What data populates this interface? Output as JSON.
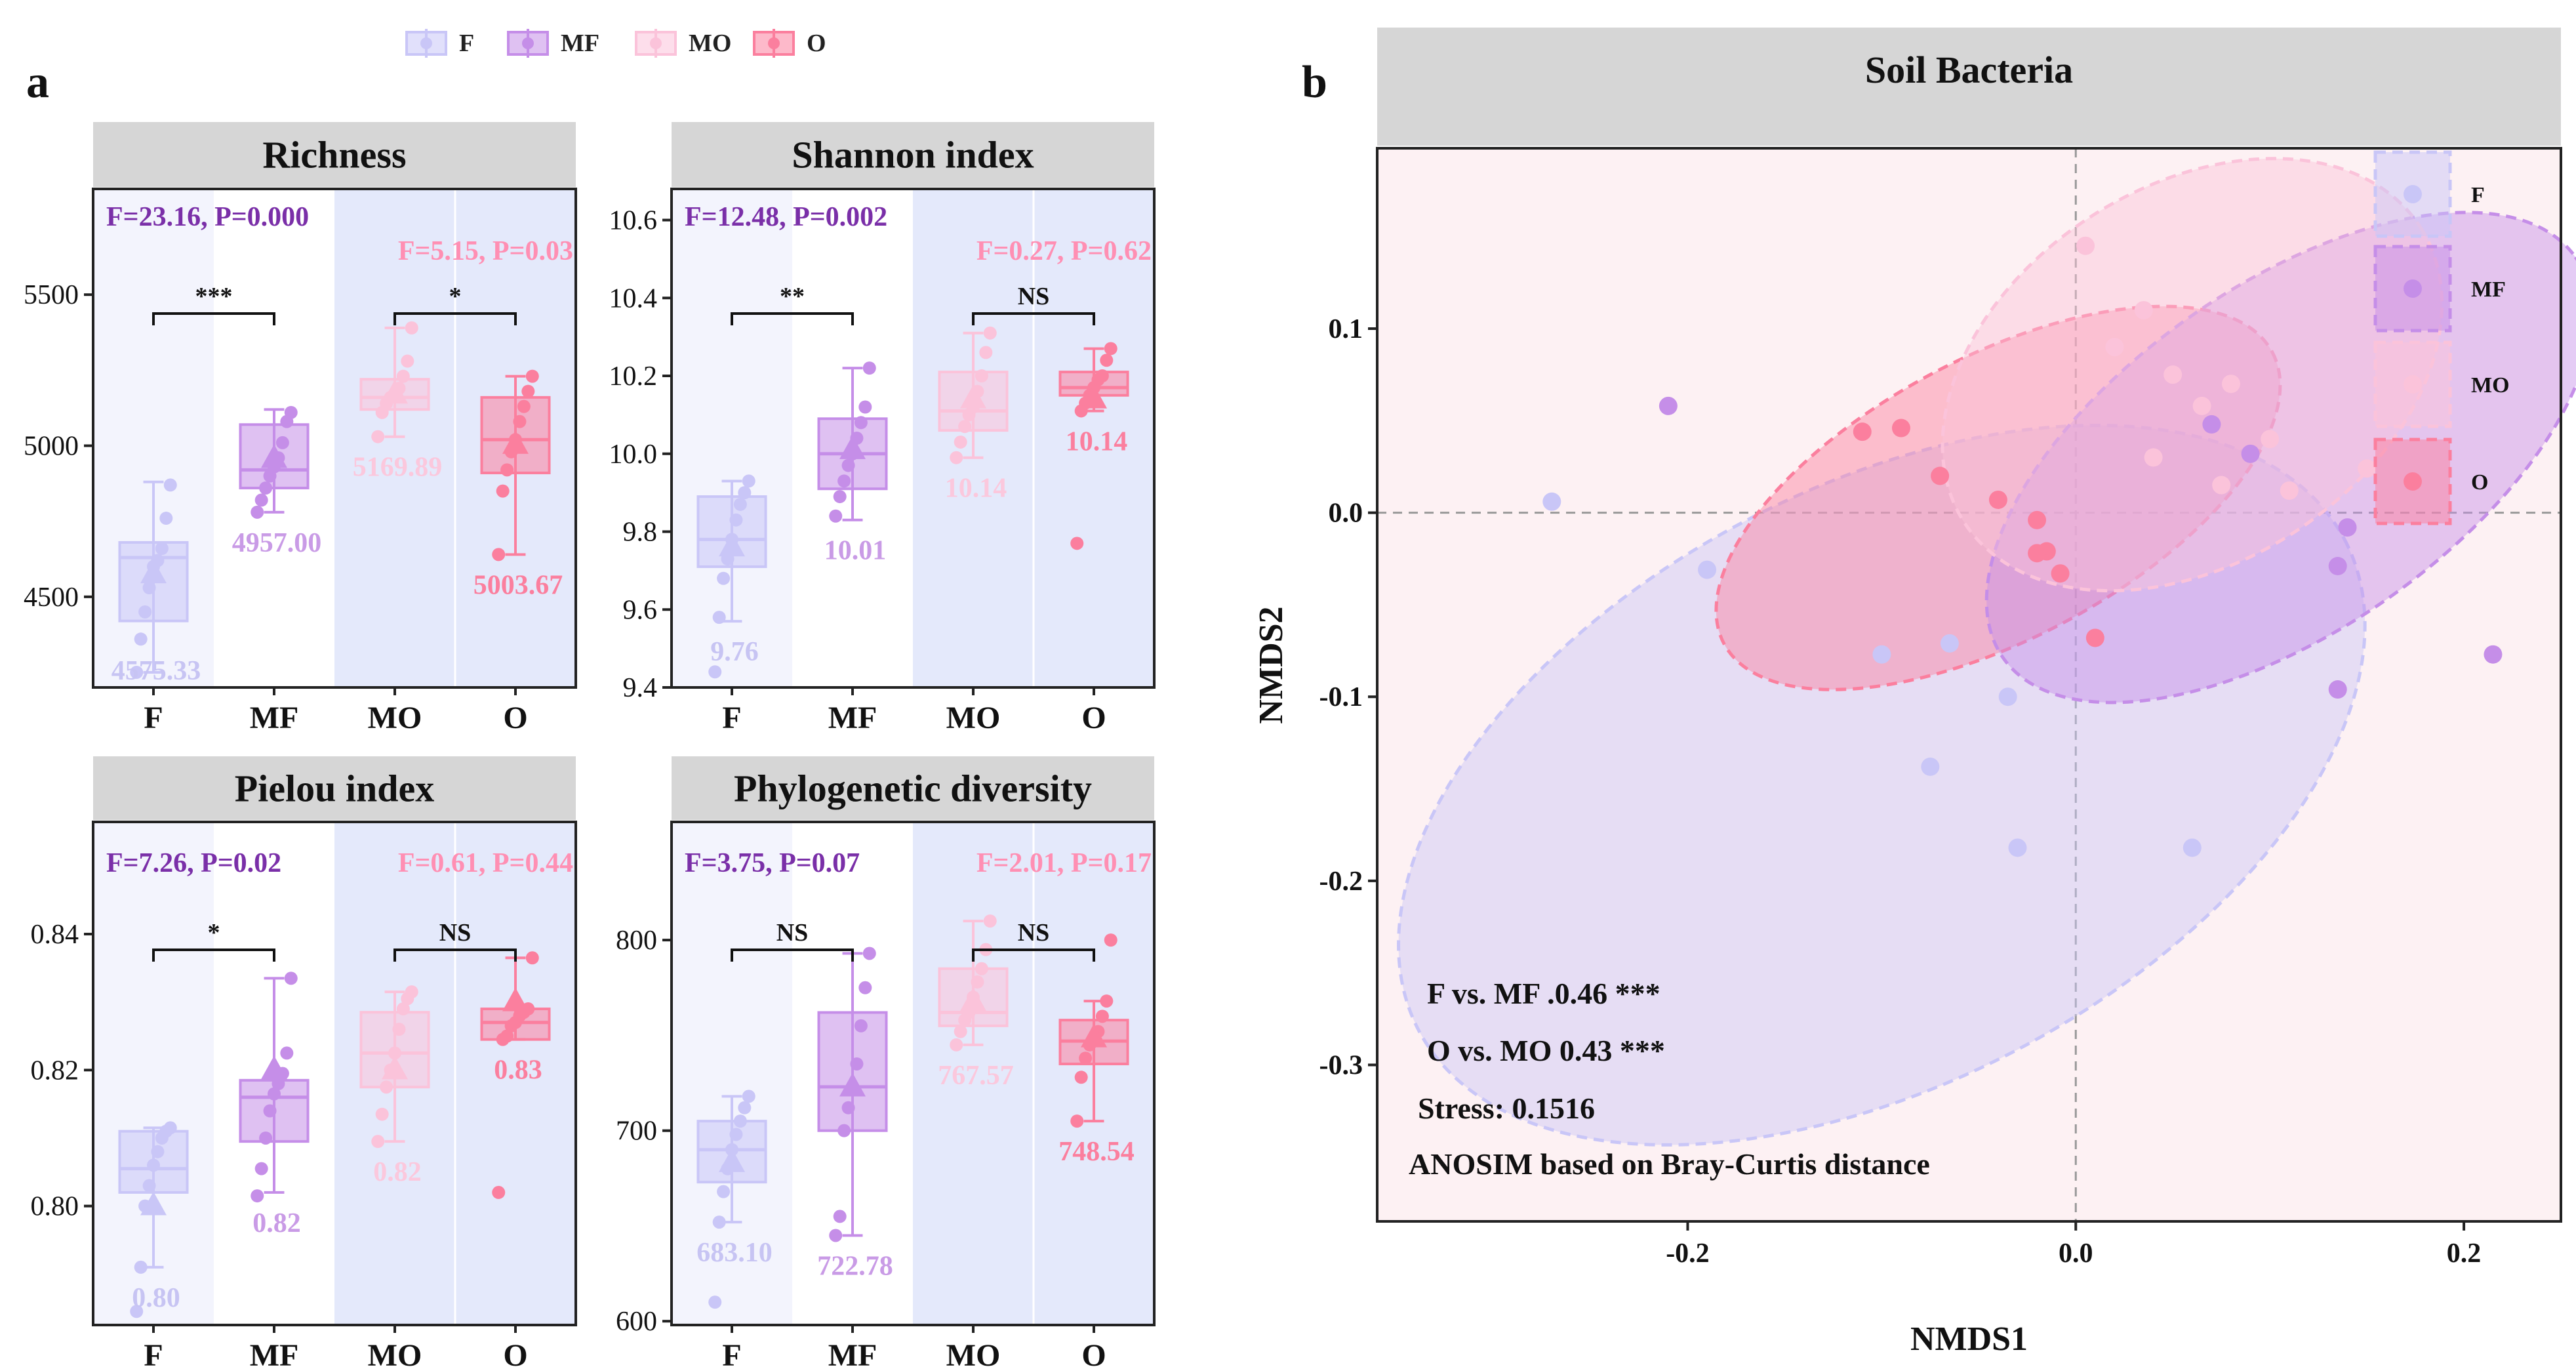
{
  "legend": {
    "items": [
      {
        "label": "F",
        "color": "#c9c6f7"
      },
      {
        "label": "MF",
        "color": "#c58ee8"
      },
      {
        "label": "MO",
        "color": "#fbc3da"
      },
      {
        "label": "O",
        "color": "#fb7f9e"
      }
    ]
  },
  "panel_a": {
    "label": "a"
  },
  "panel_b": {
    "label": "b"
  },
  "colors": {
    "F": "#c9c6f7",
    "MF": "#c58ee8",
    "MO": "#fbc3da",
    "O": "#fb7f9e",
    "title_bg": "#d6d6d6",
    "stat_left": "#7a2fa8",
    "stat_right": "#ff8fb3",
    "F_text": "#c7c4f3",
    "MF_text": "#c99be6",
    "MO_text": "#fbc8dd",
    "O_text": "#fb7f9e"
  },
  "chart_data": [
    {
      "id": "richness",
      "type": "box",
      "title": "Richness",
      "categories": [
        "F",
        "MF",
        "MO",
        "O"
      ],
      "ylim": [
        4200,
        5850
      ],
      "yticks": [
        4500,
        5000,
        5500
      ],
      "stats_left": "F=23.16, P=0.000",
      "stats_right": "F=5.15, P=0.03",
      "sig_left": "***",
      "sig_right": "*",
      "boxes": [
        {
          "min": 4250,
          "q1": 4420,
          "median": 4630,
          "q3": 4680,
          "max": 4880,
          "mean": 4575.33
        },
        {
          "min": 4780,
          "q1": 4860,
          "median": 4920,
          "q3": 5070,
          "max": 5120,
          "mean": 4957.0
        },
        {
          "min": 5030,
          "q1": 5120,
          "median": 5160,
          "q3": 5220,
          "max": 5390,
          "mean": 5169.89
        },
        {
          "min": 4640,
          "q1": 4910,
          "median": 5020,
          "q3": 5160,
          "max": 5230,
          "mean": 5003.67
        }
      ],
      "points": [
        [
          4250,
          4360,
          4450,
          4530,
          4600,
          4620,
          4660,
          4760,
          4870
        ],
        [
          4780,
          4820,
          4860,
          4900,
          4930,
          4960,
          5010,
          5080,
          5110
        ],
        [
          5030,
          5110,
          5140,
          5160,
          5170,
          5190,
          5230,
          5280,
          5390
        ],
        [
          4640,
          4850,
          4920,
          4980,
          5020,
          5080,
          5130,
          5180,
          5230
        ]
      ],
      "mean_labels": [
        "4575.33",
        "4957.00",
        "5169.89",
        "5003.67"
      ]
    },
    {
      "id": "shannon",
      "type": "box",
      "title": "Shannon index",
      "categories": [
        "F",
        "MF",
        "MO",
        "O"
      ],
      "ylim": [
        9.4,
        10.68
      ],
      "yticks": [
        9.4,
        9.6,
        9.8,
        10.0,
        10.2,
        10.4,
        10.6
      ],
      "stats_left": "F=12.48, P=0.002",
      "stats_right": "F=0.27, P=0.62",
      "sig_left": "**",
      "sig_right": "NS",
      "boxes": [
        {
          "min": 9.57,
          "q1": 9.71,
          "median": 9.78,
          "q3": 9.89,
          "max": 9.93,
          "mean": 9.76
        },
        {
          "min": 9.83,
          "q1": 9.91,
          "median": 10.0,
          "q3": 10.09,
          "max": 10.22,
          "mean": 10.01
        },
        {
          "min": 9.99,
          "q1": 10.06,
          "median": 10.11,
          "q3": 10.21,
          "max": 10.31,
          "mean": 10.14
        },
        {
          "min": 10.11,
          "q1": 10.15,
          "median": 10.17,
          "q3": 10.21,
          "max": 10.27,
          "mean": 10.14
        }
      ],
      "points": [
        [
          9.44,
          9.58,
          9.68,
          9.73,
          9.78,
          9.83,
          9.87,
          9.9,
          9.93
        ],
        [
          9.84,
          9.89,
          9.93,
          9.97,
          10.0,
          10.04,
          10.08,
          10.12,
          10.22
        ],
        [
          9.99,
          10.03,
          10.07,
          10.1,
          10.12,
          10.16,
          10.2,
          10.26,
          10.31
        ],
        [
          9.77,
          10.11,
          10.13,
          10.15,
          10.17,
          10.19,
          10.2,
          10.24,
          10.27
        ]
      ],
      "mean_labels": [
        "9.76",
        "10.01",
        "10.14",
        "10.14"
      ]
    },
    {
      "id": "pielou",
      "type": "box",
      "title": "Pielou index",
      "categories": [
        "F",
        "MF",
        "MO",
        "O"
      ],
      "ylim": [
        0.7825,
        0.8565
      ],
      "yticks": [
        0.8,
        0.82,
        0.84
      ],
      "stats_left": "F=7.26, P=0.02",
      "stats_right": "F=0.61, P=0.44",
      "sig_left": "*",
      "sig_right": "NS",
      "boxes": [
        {
          "min": 0.791,
          "q1": 0.802,
          "median": 0.8055,
          "q3": 0.811,
          "max": 0.8115,
          "mean": 0.8
        },
        {
          "min": 0.802,
          "q1": 0.8095,
          "median": 0.816,
          "q3": 0.8185,
          "max": 0.8335,
          "mean": 0.82
        },
        {
          "min": 0.8095,
          "q1": 0.8175,
          "median": 0.8225,
          "q3": 0.8285,
          "max": 0.8315,
          "mean": 0.82
        },
        {
          "min": 0.8245,
          "q1": 0.8245,
          "median": 0.827,
          "q3": 0.829,
          "max": 0.8365,
          "mean": 0.83
        }
      ],
      "points": [
        [
          0.7845,
          0.791,
          0.8,
          0.803,
          0.806,
          0.808,
          0.81,
          0.811,
          0.8115
        ],
        [
          0.8015,
          0.8055,
          0.81,
          0.814,
          0.8165,
          0.818,
          0.8195,
          0.8225,
          0.8335
        ],
        [
          0.8095,
          0.8135,
          0.8175,
          0.82,
          0.8225,
          0.826,
          0.829,
          0.8305,
          0.8315
        ],
        [
          0.802,
          0.8245,
          0.825,
          0.8265,
          0.827,
          0.828,
          0.8285,
          0.829,
          0.8365
        ]
      ],
      "mean_labels": [
        "0.80",
        "0.82",
        "0.82",
        "0.83"
      ]
    },
    {
      "id": "pd",
      "type": "box",
      "title": "Phylogenetic diversity",
      "categories": [
        "F",
        "MF",
        "MO",
        "O"
      ],
      "ylim": [
        598,
        862
      ],
      "yticks": [
        600,
        700,
        800
      ],
      "stats_left": "F=3.75, P=0.07",
      "stats_right": "F=2.01, P=0.17",
      "sig_left": "NS",
      "sig_right": "NS",
      "boxes": [
        {
          "min": 652,
          "q1": 673,
          "median": 690,
          "q3": 705,
          "max": 718,
          "mean": 683.1
        },
        {
          "min": 645,
          "q1": 700,
          "median": 723,
          "q3": 762,
          "max": 793,
          "mean": 722.78
        },
        {
          "min": 745,
          "q1": 755,
          "median": 762,
          "q3": 785,
          "max": 810,
          "mean": 767.57
        },
        {
          "min": 705,
          "q1": 735,
          "median": 747,
          "q3": 758,
          "max": 768,
          "mean": 748.54
        }
      ],
      "points": [
        [
          610,
          652,
          668,
          680,
          690,
          698,
          705,
          712,
          718
        ],
        [
          645,
          655,
          700,
          712,
          723,
          735,
          755,
          775,
          793
        ],
        [
          745,
          752,
          758,
          762,
          770,
          778,
          785,
          795,
          810
        ],
        [
          705,
          728,
          738,
          745,
          748,
          752,
          760,
          768,
          800
        ]
      ],
      "mean_labels": [
        "683.10",
        "722.78",
        "767.57",
        "748.54"
      ]
    },
    {
      "id": "nmds",
      "type": "scatter",
      "title": "Soil Bacteria",
      "xlabel": "NMDS1",
      "ylabel": "NMDS2",
      "xlim": [
        -0.36,
        0.25
      ],
      "ylim": [
        -0.385,
        0.198
      ],
      "xticks": [
        -0.2,
        0.0,
        0.2
      ],
      "yticks": [
        -0.3,
        -0.2,
        -0.1,
        0.0,
        0.1
      ],
      "xtick_labels": [
        "-0.2",
        "0.0",
        "0.2"
      ],
      "ytick_labels": [
        "-0.3",
        "-0.2",
        "-0.1",
        "0.0",
        "0.1"
      ],
      "series": [
        {
          "name": "F",
          "x": [
            -0.27,
            -0.19,
            -0.1,
            -0.065,
            -0.035,
            -0.075,
            -0.03,
            0.06
          ],
          "y": [
            0.006,
            -0.031,
            -0.077,
            -0.071,
            -0.1,
            -0.138,
            -0.182,
            -0.182
          ],
          "ellipse": {
            "cx": -0.1,
            "cy": -0.148,
            "rx": 0.27,
            "ry": 0.095,
            "angle_deg": -28
          }
        },
        {
          "name": "MF",
          "x": [
            -0.21,
            0.14,
            0.135,
            0.135,
            0.215,
            0.07,
            0.09
          ],
          "y": [
            0.058,
            -0.008,
            -0.029,
            -0.096,
            -0.077,
            0.048,
            0.032
          ],
          "ellipse": {
            "cx": 0.11,
            "cy": 0.03,
            "rx": 0.18,
            "ry": 0.055,
            "angle_deg": -35
          }
        },
        {
          "name": "MO",
          "x": [
            0.005,
            0.02,
            0.035,
            0.05,
            0.065,
            0.08,
            0.1,
            0.15,
            0.04,
            0.075,
            0.11
          ],
          "y": [
            0.145,
            0.09,
            0.11,
            0.075,
            0.058,
            0.07,
            0.04,
            0.024,
            0.03,
            0.015,
            0.012
          ],
          "ellipse": {
            "cx": 0.06,
            "cy": 0.075,
            "rx": 0.14,
            "ry": 0.06,
            "angle_deg": -33
          }
        },
        {
          "name": "O",
          "x": [
            -0.11,
            -0.09,
            -0.07,
            -0.04,
            -0.02,
            -0.015,
            -0.008,
            -0.02,
            0.01
          ],
          "y": [
            0.044,
            0.046,
            0.02,
            0.007,
            -0.004,
            -0.021,
            -0.033,
            -0.022,
            -0.068
          ],
          "ellipse": {
            "cx": -0.04,
            "cy": 0.008,
            "rx": 0.16,
            "ry": 0.045,
            "angle_deg": -28
          }
        }
      ],
      "legend": [
        "F",
        "MF",
        "MO",
        "O"
      ],
      "annotations": [
        "F vs. MF .0.46 ***",
        "O vs. MO 0.43 ***",
        "Stress: 0.1516",
        "ANOSIM based on Bray-Curtis  distance"
      ]
    }
  ]
}
